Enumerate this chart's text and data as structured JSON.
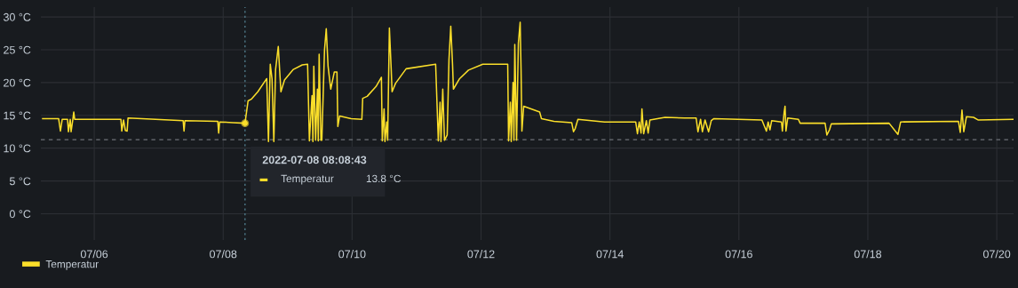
{
  "chart_data": {
    "type": "line",
    "xlim": [
      "2022-07-05T04:08",
      "2022-07-20T06:15"
    ],
    "ylim": [
      -4,
      31.5
    ],
    "xticks": [
      {
        "value": "2022-07-06",
        "label": "07/06"
      },
      {
        "value": "2022-07-08",
        "label": "07/08"
      },
      {
        "value": "2022-07-10",
        "label": "07/10"
      },
      {
        "value": "2022-07-12",
        "label": "07/12"
      },
      {
        "value": "2022-07-14",
        "label": "07/14"
      },
      {
        "value": "2022-07-16",
        "label": "07/16"
      },
      {
        "value": "2022-07-18",
        "label": "07/18"
      },
      {
        "value": "2022-07-20",
        "label": "07/20"
      }
    ],
    "yticks": [
      {
        "value": 0,
        "label": "0 °C"
      },
      {
        "value": 5,
        "label": "5 °C"
      },
      {
        "value": 10,
        "label": "10 °C"
      },
      {
        "value": 15,
        "label": "15 °C"
      },
      {
        "value": 20,
        "label": "20 °C"
      },
      {
        "value": 25,
        "label": "25 °C"
      },
      {
        "value": 30,
        "label": "30 °C"
      }
    ],
    "grid": true,
    "legend": "bottom left",
    "marker": "none",
    "line_style": "solid",
    "ref_lines": [
      {
        "axis": "x",
        "value": "2022-07-08T08:08:43",
        "label": null,
        "color": "#5b8fa0",
        "line_style": "dotted"
      },
      {
        "axis": "y",
        "value": 11.3,
        "label": null,
        "color": "#6e7278",
        "line_style": "dashed"
      }
    ],
    "annotations": [
      "2022-07-08 08:08:43",
      "13.8 °C"
    ],
    "series": [
      {
        "name": "Temperatur",
        "color": "#fade2a",
        "x": [
          "2022-07-05T04:48",
          "2022-07-05T10:45",
          "2022-07-05T11:25",
          "2022-07-05T12:05",
          "2022-07-05T14:04",
          "2022-07-05T14:24",
          "2022-07-05T15:04",
          "2022-07-05T15:23",
          "2022-07-05T16:03",
          "2022-07-05T16:23",
          "2022-07-05T16:43",
          "2022-07-06T09:56",
          "2022-07-06T10:16",
          "2022-07-06T10:55",
          "2022-07-06T11:35",
          "2022-07-06T12:15",
          "2022-07-06T12:35",
          "2022-07-07T09:06",
          "2022-07-07T09:26",
          "2022-07-07T09:46",
          "2022-07-07T22:00",
          "2022-07-07T22:20",
          "2022-07-07T22:40",
          "2022-07-08T03:38",
          "2022-07-08T08:08",
          "2022-07-08T09:16",
          "2022-07-08T10:35",
          "2022-07-08T12:54",
          "2022-07-08T16:13",
          "2022-07-08T16:52",
          "2022-07-08T17:32",
          "2022-07-08T18:12",
          "2022-07-08T18:52",
          "2022-07-08T19:31",
          "2022-07-08T20:31",
          "2022-07-08T21:30",
          "2022-07-08T22:50",
          "2022-07-09T02:08",
          "2022-07-09T05:27",
          "2022-07-09T07:26",
          "2022-07-09T08:06",
          "2022-07-09T09:05",
          "2022-07-09T09:25",
          "2022-07-09T09:45",
          "2022-07-09T10:25",
          "2022-07-09T11:05",
          "2022-07-09T11:25",
          "2022-07-09T11:44",
          "2022-07-09T12:24",
          "2022-07-09T12:44",
          "2022-07-09T13:44",
          "2022-07-09T14:23",
          "2022-07-09T15:03",
          "2022-07-09T16:03",
          "2022-07-09T17:22",
          "2022-07-09T18:22",
          "2022-07-09T18:41",
          "2022-07-09T19:21",
          "2022-07-09T23:39",
          "2022-07-10T03:38",
          "2022-07-10T03:57",
          "2022-07-10T05:37",
          "2022-07-10T08:55",
          "2022-07-10T10:55",
          "2022-07-10T11:14",
          "2022-07-10T11:54",
          "2022-07-10T12:14",
          "2022-07-10T12:54",
          "2022-07-10T13:14",
          "2022-07-10T13:53",
          "2022-07-10T14:33",
          "2022-07-10T14:53",
          "2022-07-10T16:12",
          "2022-07-10T20:07",
          "2022-07-11T07:06",
          "2022-07-11T08:06",
          "2022-07-11T08:45",
          "2022-07-11T09:05",
          "2022-07-11T09:45",
          "2022-07-11T10:24",
          "2022-07-11T11:24",
          "2022-07-11T12:04",
          "2022-07-11T12:44",
          "2022-07-11T13:24",
          "2022-07-11T13:43",
          "2022-07-11T16:02",
          "2022-07-11T19:20",
          "2022-07-12T00:39",
          "2022-07-12T09:56",
          "2022-07-12T10:15",
          "2022-07-12T10:55",
          "2022-07-12T11:15",
          "2022-07-12T11:55",
          "2022-07-12T12:15",
          "2022-07-12T12:34",
          "2022-07-12T13:14",
          "2022-07-12T13:54",
          "2022-07-12T14:34",
          "2022-07-12T14:54",
          "2022-07-12T15:13",
          "2022-07-12T15:53",
          "2022-07-12T21:50",
          "2022-07-12T22:30",
          "2022-07-13T03:08",
          "2022-07-13T09:45",
          "2022-07-13T10:25",
          "2022-07-13T11:04",
          "2022-07-13T12:04",
          "2022-07-13T21:59",
          "2022-07-14T09:35",
          "2022-07-14T10:14",
          "2022-07-14T10:54",
          "2022-07-14T11:34",
          "2022-07-14T11:54",
          "2022-07-14T12:33",
          "2022-07-14T13:33",
          "2022-07-14T14:13",
          "2022-07-14T14:53",
          "2022-07-14T20:30",
          "2022-07-15T03:47",
          "2022-07-15T08:05",
          "2022-07-15T08:45",
          "2022-07-15T09:44",
          "2022-07-15T10:24",
          "2022-07-15T11:24",
          "2022-07-15T12:43",
          "2022-07-15T13:43",
          "2022-07-15T14:43",
          "2022-07-16T08:34",
          "2022-07-16T10:14",
          "2022-07-16T10:53",
          "2022-07-16T11:33",
          "2022-07-16T12:13",
          "2022-07-16T15:51",
          "2022-07-16T16:11",
          "2022-07-16T16:51",
          "2022-07-16T17:11",
          "2022-07-16T17:31",
          "2022-07-16T18:11",
          "2022-07-16T22:09",
          "2022-07-16T22:48",
          "2022-07-17T08:05",
          "2022-07-17T08:45",
          "2022-07-17T09:44",
          "2022-07-17T10:24",
          "2022-07-18T07:55",
          "2022-07-18T11:13",
          "2022-07-18T12:13",
          "2022-07-19T09:44",
          "2022-07-19T10:24",
          "2022-07-19T11:03",
          "2022-07-19T11:43",
          "2022-07-19T12:43",
          "2022-07-19T15:21",
          "2022-07-19T17:01",
          "2022-07-20T06:15"
        ],
        "values": [
          14.5,
          14.5,
          12.6,
          14.4,
          14.4,
          12.5,
          14.4,
          12.5,
          14.4,
          15.5,
          14.4,
          14.4,
          12.6,
          14.3,
          12.7,
          12.6,
          14.6,
          14.2,
          12.6,
          14.2,
          14.1,
          12.3,
          14.0,
          13.9,
          13.8,
          17.2,
          17.5,
          18.6,
          20.6,
          11.0,
          22.8,
          20.5,
          11.0,
          22.0,
          25.5,
          18.6,
          20.4,
          22.0,
          22.7,
          22.8,
          11.1,
          18.0,
          11.0,
          22.5,
          11.2,
          19.0,
          11.1,
          24.3,
          11.2,
          11.2,
          25.0,
          28.2,
          22.5,
          19.0,
          21.6,
          21.6,
          13.3,
          14.9,
          14.5,
          14.4,
          17.6,
          17.9,
          19.4,
          20.8,
          11.1,
          16.0,
          11.0,
          14.0,
          11.2,
          28.3,
          22.1,
          18.6,
          19.9,
          22.1,
          22.8,
          11.1,
          17.0,
          11.0,
          19.0,
          11.2,
          12.0,
          23.5,
          28.6,
          22.7,
          19.0,
          20.6,
          21.9,
          22.8,
          22.8,
          11.1,
          17.0,
          11.0,
          20.0,
          11.2,
          25.8,
          11.2,
          26.0,
          29.2,
          22.0,
          12.6,
          16.4,
          15.5,
          14.5,
          14.1,
          13.9,
          12.5,
          13.0,
          14.4,
          14.0,
          14.0,
          12.2,
          14.0,
          12.3,
          16.0,
          12.2,
          14.2,
          12.3,
          14.3,
          14.7,
          14.6,
          14.6,
          12.5,
          14.4,
          12.5,
          14.3,
          12.5,
          14.2,
          14.5,
          14.3,
          12.6,
          14.0,
          12.8,
          14.2,
          14.0,
          12.6,
          15.5,
          16.4,
          12.6,
          14.6,
          14.4,
          13.8,
          13.8,
          12.0,
          12.8,
          13.7,
          13.8,
          12.1,
          14.0,
          14.1,
          12.4,
          15.8,
          12.5,
          14.8,
          14.7,
          14.3,
          14.4
        ]
      }
    ]
  }
}
